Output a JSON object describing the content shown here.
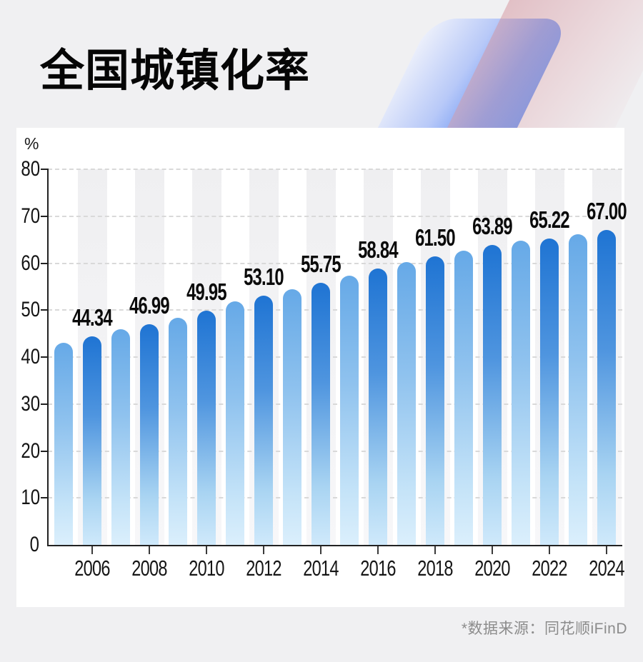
{
  "header": {
    "title": "全国城镇化率"
  },
  "footer": {
    "source_note": "*数据来源：同花顺iFinD"
  },
  "chart_data": {
    "type": "bar",
    "title": "全国城镇化率",
    "xlabel": "",
    "ylabel": "%",
    "ylim": [
      0,
      80
    ],
    "y_ticks": [
      0,
      10,
      20,
      30,
      40,
      50,
      60,
      70,
      80
    ],
    "grid": "dashed-horizontal",
    "legend": "none",
    "x_tick_labels": [
      "2006",
      "2008",
      "2010",
      "2012",
      "2014",
      "2016",
      "2018",
      "2020",
      "2022",
      "2024"
    ],
    "bars": [
      {
        "year": "2005",
        "value": 42.99,
        "label": "",
        "emphasized": false
      },
      {
        "year": "2006",
        "value": 44.34,
        "label": "44.34",
        "emphasized": true
      },
      {
        "year": "2007",
        "value": 45.89,
        "label": "",
        "emphasized": false
      },
      {
        "year": "2008",
        "value": 46.99,
        "label": "46.99",
        "emphasized": true
      },
      {
        "year": "2009",
        "value": 48.34,
        "label": "",
        "emphasized": false
      },
      {
        "year": "2010",
        "value": 49.95,
        "label": "49.95",
        "emphasized": true
      },
      {
        "year": "2011",
        "value": 51.83,
        "label": "",
        "emphasized": false
      },
      {
        "year": "2012",
        "value": 53.1,
        "label": "53.10",
        "emphasized": true
      },
      {
        "year": "2013",
        "value": 54.49,
        "label": "",
        "emphasized": false
      },
      {
        "year": "2014",
        "value": 55.75,
        "label": "55.75",
        "emphasized": true
      },
      {
        "year": "2015",
        "value": 57.33,
        "label": "",
        "emphasized": false
      },
      {
        "year": "2016",
        "value": 58.84,
        "label": "58.84",
        "emphasized": true
      },
      {
        "year": "2017",
        "value": 60.24,
        "label": "",
        "emphasized": false
      },
      {
        "year": "2018",
        "value": 61.5,
        "label": "61.50",
        "emphasized": true
      },
      {
        "year": "2019",
        "value": 62.71,
        "label": "",
        "emphasized": false
      },
      {
        "year": "2020",
        "value": 63.89,
        "label": "63.89",
        "emphasized": true
      },
      {
        "year": "2021",
        "value": 64.72,
        "label": "",
        "emphasized": false
      },
      {
        "year": "2022",
        "value": 65.22,
        "label": "65.22",
        "emphasized": true
      },
      {
        "year": "2023",
        "value": 66.16,
        "label": "",
        "emphasized": false
      },
      {
        "year": "2024",
        "value": 67.0,
        "label": "67.00",
        "emphasized": true
      }
    ],
    "colors": {
      "bar_dark_top": "#1f74d3",
      "bar_dark_bottom": "#cfe9fb",
      "bar_light_top": "#66a9e7",
      "bar_light_bottom": "#dbeffc",
      "band": "#efeff1",
      "grid": "#d9d9d9",
      "axis": "#222222"
    }
  }
}
